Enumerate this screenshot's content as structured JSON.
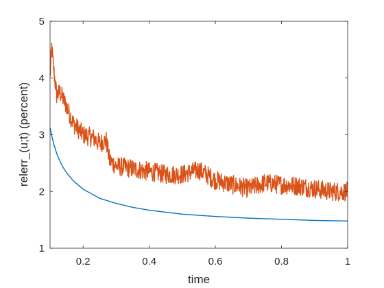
{
  "chart_data": {
    "type": "line",
    "title": "",
    "xlabel": "time",
    "ylabel": "relerr_(u;t) (percent)",
    "xlim": [
      0.1,
      1
    ],
    "ylim": [
      1,
      5
    ],
    "xticks": [
      0.2,
      0.4,
      0.6,
      0.8,
      1
    ],
    "xtick_labels": [
      "0.2",
      "0.4",
      "0.6",
      "0.8",
      "1"
    ],
    "yticks": [
      1,
      2,
      3,
      4,
      5
    ],
    "ytick_labels": [
      "1",
      "2",
      "3",
      "4",
      "5"
    ],
    "grid": false,
    "box": true,
    "series": [
      {
        "color": "#0072BD",
        "x": [
          0.1,
          0.11,
          0.12,
          0.13,
          0.14,
          0.15,
          0.17,
          0.2,
          0.25,
          0.3,
          0.35,
          0.4,
          0.5,
          0.6,
          0.7,
          0.8,
          0.9,
          1.0
        ],
        "y": [
          3.12,
          2.86,
          2.67,
          2.53,
          2.42,
          2.33,
          2.19,
          2.04,
          1.88,
          1.79,
          1.72,
          1.67,
          1.6,
          1.56,
          1.53,
          1.51,
          1.49,
          1.48
        ]
      },
      {
        "color": "#D95319",
        "x": [
          0.1,
          0.105,
          0.11,
          0.12,
          0.13,
          0.15,
          0.17,
          0.2,
          0.23,
          0.25,
          0.27,
          0.28,
          0.3,
          0.35,
          0.4,
          0.45,
          0.5,
          0.55,
          0.6,
          0.65,
          0.7,
          0.75,
          0.8,
          0.85,
          0.9,
          0.95,
          1.0
        ],
        "y": [
          4.0,
          4.55,
          4.2,
          3.7,
          3.75,
          3.5,
          3.2,
          3.0,
          2.95,
          2.85,
          2.9,
          2.55,
          2.45,
          2.4,
          2.35,
          2.3,
          2.3,
          2.38,
          2.2,
          2.12,
          2.05,
          2.15,
          2.12,
          2.1,
          2.05,
          2.0,
          2.0
        ],
        "noise_amplitude": 0.17
      }
    ]
  }
}
